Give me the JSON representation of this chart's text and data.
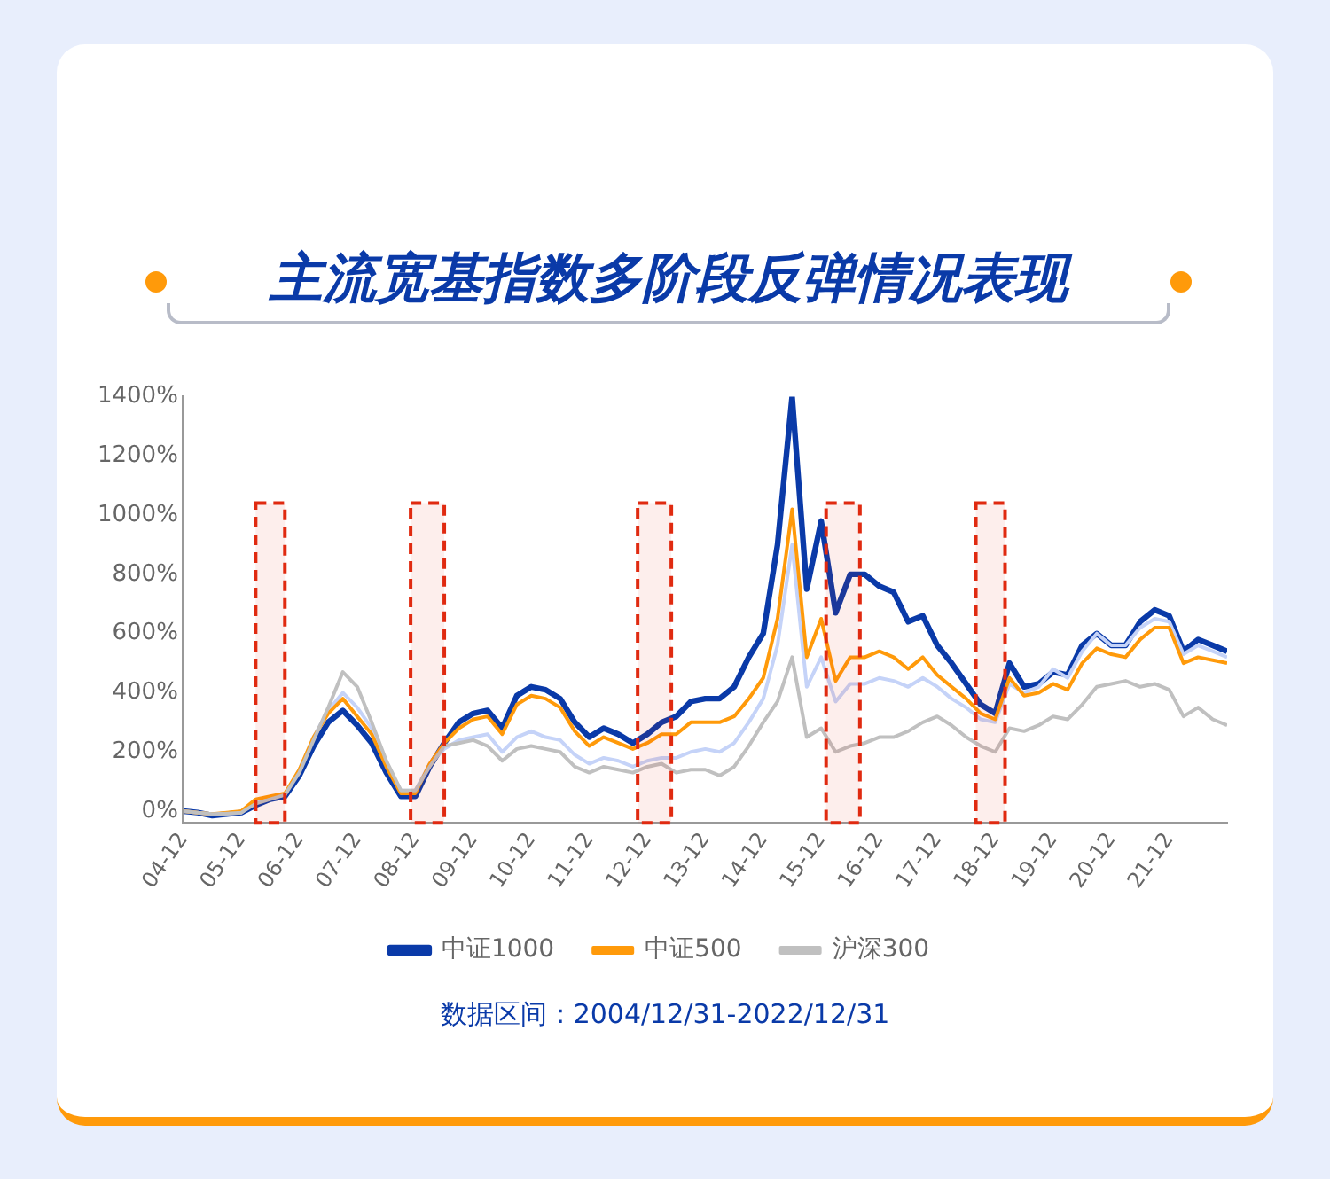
{
  "chart_data": {
    "type": "line",
    "title": "主流宽基指数多阶段反弹情况表现",
    "x": [
      "2004-12",
      "2005-03",
      "2005-06",
      "2005-09",
      "2005-12",
      "2006-03",
      "2006-06",
      "2006-09",
      "2006-12",
      "2007-03",
      "2007-06",
      "2007-09",
      "2007-12",
      "2008-03",
      "2008-06",
      "2008-09",
      "2008-12",
      "2009-03",
      "2009-06",
      "2009-09",
      "2009-12",
      "2010-03",
      "2010-06",
      "2010-09",
      "2010-12",
      "2011-03",
      "2011-06",
      "2011-09",
      "2011-12",
      "2012-03",
      "2012-06",
      "2012-09",
      "2012-12",
      "2013-03",
      "2013-06",
      "2013-09",
      "2013-12",
      "2014-03",
      "2014-06",
      "2014-09",
      "2014-12",
      "2015-03",
      "2015-06",
      "2015-09",
      "2015-12",
      "2016-03",
      "2016-06",
      "2016-09",
      "2016-12",
      "2017-03",
      "2017-06",
      "2017-09",
      "2017-12",
      "2018-03",
      "2018-06",
      "2018-09",
      "2018-12",
      "2019-03",
      "2019-06",
      "2019-09",
      "2019-12",
      "2020-03",
      "2020-06",
      "2020-09",
      "2020-12",
      "2021-03",
      "2021-06",
      "2021-09",
      "2021-12",
      "2022-03",
      "2022-06",
      "2022-09",
      "2022-12"
    ],
    "series": [
      {
        "name": "中证1000",
        "color": "#0a3aa8",
        "values": [
          0,
          -5,
          -15,
          -10,
          -5,
          20,
          40,
          50,
          120,
          220,
          300,
          340,
          290,
          230,
          130,
          50,
          50,
          150,
          230,
          300,
          330,
          340,
          280,
          390,
          420,
          410,
          380,
          300,
          250,
          280,
          260,
          230,
          260,
          300,
          320,
          370,
          380,
          380,
          420,
          520,
          600,
          900,
          1400,
          750,
          980,
          670,
          800,
          800,
          760,
          740,
          640,
          660,
          560,
          500,
          430,
          360,
          330,
          500,
          420,
          430,
          470,
          460,
          560,
          600,
          560,
          560,
          640,
          680,
          660,
          540,
          580,
          560,
          540
        ]
      },
      {
        "color": "#c5d3f8",
        "values": [
          0,
          -5,
          -10,
          -8,
          -5,
          30,
          45,
          55,
          140,
          250,
          340,
          400,
          350,
          280,
          160,
          70,
          70,
          160,
          210,
          240,
          250,
          260,
          200,
          250,
          270,
          250,
          240,
          190,
          160,
          180,
          170,
          150,
          170,
          180,
          180,
          200,
          210,
          200,
          230,
          300,
          380,
          560,
          900,
          420,
          520,
          370,
          430,
          430,
          450,
          440,
          420,
          450,
          420,
          380,
          350,
          310,
          300,
          430,
          400,
          420,
          480,
          450,
          540,
          600,
          560,
          560,
          620,
          650,
          640,
          530,
          560,
          540,
          520
        ]
      },
      {
        "name": "中证500",
        "color": "#ff9a0a",
        "values": [
          0,
          -5,
          -10,
          -5,
          0,
          40,
          50,
          60,
          140,
          250,
          330,
          380,
          320,
          260,
          150,
          60,
          60,
          160,
          230,
          280,
          310,
          320,
          260,
          360,
          390,
          380,
          350,
          270,
          220,
          250,
          230,
          210,
          230,
          260,
          260,
          300,
          300,
          300,
          320,
          380,
          450,
          650,
          1020,
          520,
          650,
          440,
          520,
          520,
          540,
          520,
          480,
          520,
          460,
          420,
          380,
          330,
          310,
          450,
          390,
          400,
          430,
          410,
          500,
          550,
          530,
          520,
          580,
          620,
          620,
          500,
          520,
          510,
          500
        ]
      },
      {
        "name": "沪深300",
        "color": "#c0c0c0",
        "values": [
          0,
          -5,
          -10,
          -8,
          -5,
          25,
          40,
          55,
          130,
          240,
          350,
          470,
          420,
          300,
          170,
          70,
          70,
          150,
          220,
          230,
          240,
          220,
          170,
          210,
          220,
          210,
          200,
          150,
          130,
          150,
          140,
          130,
          150,
          160,
          130,
          140,
          140,
          120,
          150,
          220,
          300,
          370,
          520,
          250,
          280,
          200,
          220,
          230,
          250,
          250,
          270,
          300,
          320,
          290,
          250,
          220,
          200,
          280,
          270,
          290,
          320,
          310,
          360,
          420,
          430,
          440,
          420,
          430,
          410,
          320,
          350,
          310,
          290
        ]
      }
    ],
    "xlim": [
      "2004-12",
      "2022-12"
    ],
    "xticks": [
      {
        "value": "2004-12",
        "label": "04-12"
      },
      {
        "value": "2005-12",
        "label": "05-12"
      },
      {
        "value": "2006-12",
        "label": "06-12"
      },
      {
        "value": "2007-12",
        "label": "07-12"
      },
      {
        "value": "2008-12",
        "label": "08-12"
      },
      {
        "value": "2009-12",
        "label": "09-12"
      },
      {
        "value": "2010-12",
        "label": "10-12"
      },
      {
        "value": "2011-12",
        "label": "11-12"
      },
      {
        "value": "2012-12",
        "label": "12-12"
      },
      {
        "value": "2013-12",
        "label": "13-12"
      },
      {
        "value": "2014-12",
        "label": "14-12"
      },
      {
        "value": "2015-12",
        "label": "15-12"
      },
      {
        "value": "2016-12",
        "label": "16-12"
      },
      {
        "value": "2017-12",
        "label": "17-12"
      },
      {
        "value": "2018-12",
        "label": "18-12"
      },
      {
        "value": "2019-12",
        "label": "19-12"
      },
      {
        "value": "2020-12",
        "label": "20-12"
      },
      {
        "value": "2021-12",
        "label": "21-12"
      }
    ],
    "ylim": [
      -40,
      1400
    ],
    "yticks": [
      {
        "value": 0,
        "label": "0%"
      },
      {
        "value": 200,
        "label": "200%"
      },
      {
        "value": 400,
        "label": "400%"
      },
      {
        "value": 600,
        "label": "600%"
      },
      {
        "value": 800,
        "label": "800%"
      },
      {
        "value": 1000,
        "label": "1000%"
      },
      {
        "value": 1200,
        "label": "1200%"
      },
      {
        "value": 1400,
        "label": "1400%"
      }
    ],
    "bands": [
      {
        "axis": "x",
        "from": "2006-03",
        "to": "2006-09",
        "color": "#e02a10"
      },
      {
        "axis": "x",
        "from": "2008-11",
        "to": "2009-06",
        "color": "#e02a10"
      },
      {
        "axis": "x",
        "from": "2012-10",
        "to": "2013-05",
        "color": "#e02a10"
      },
      {
        "axis": "x",
        "from": "2016-01",
        "to": "2016-08",
        "color": "#e02a10"
      },
      {
        "axis": "x",
        "from": "2018-08",
        "to": "2019-02",
        "color": "#e02a10"
      }
    ],
    "grid": false,
    "legend": "bottom",
    "marker": "none",
    "line_style": "solid",
    "annotations": [
      "数据区间：2004/12/31-2022/12/31"
    ]
  }
}
